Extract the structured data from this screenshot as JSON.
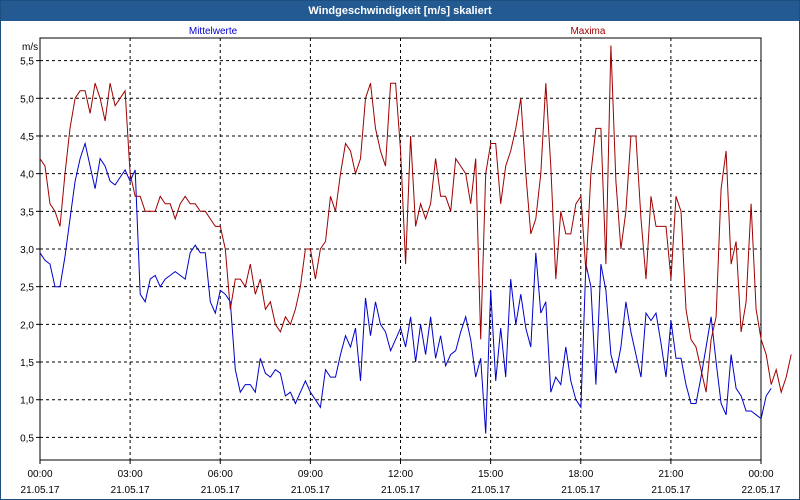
{
  "window": {
    "title": "Windgeschwindigkeit [m/s] skaliert"
  },
  "colors": {
    "titlebar": "#235a92",
    "mean": "#0000cc",
    "max": "#a00000",
    "grid": "#000000"
  },
  "chart_data": {
    "type": "line",
    "title": "Windgeschwindigkeit [m/s] skaliert",
    "ylabel": "m/s",
    "xlabel": "",
    "ylim": [
      0.2,
      5.8
    ],
    "xlim": [
      0,
      24
    ],
    "grid": true,
    "legend_placement": "top",
    "y_ticks": [
      "0,5",
      "1,0",
      "1,5",
      "2,0",
      "2,5",
      "3,0",
      "3,5",
      "4,0",
      "4,5",
      "5,0",
      "5,5"
    ],
    "x_ticks": [
      {
        "time": "00:00",
        "date": "21.05.17"
      },
      {
        "time": "03:00",
        "date": "21.05.17"
      },
      {
        "time": "06:00",
        "date": "21.05.17"
      },
      {
        "time": "09:00",
        "date": "21.05.17"
      },
      {
        "time": "12:00",
        "date": "21.05.17"
      },
      {
        "time": "15:00",
        "date": "21.05.17"
      },
      {
        "time": "18:00",
        "date": "21.05.17"
      },
      {
        "time": "21:00",
        "date": "21.05.17"
      },
      {
        "time": "00:00",
        "date": "22.05.17"
      }
    ],
    "series": [
      {
        "name": "Mittelwerte",
        "color": "#0000cc",
        "x_step_hours": 0.1667,
        "values": [
          2.95,
          2.85,
          2.8,
          2.5,
          2.5,
          2.9,
          3.4,
          3.9,
          4.2,
          4.4,
          4.1,
          3.8,
          4.2,
          4.1,
          3.9,
          3.85,
          3.95,
          4.05,
          3.9,
          4.05,
          2.4,
          2.3,
          2.6,
          2.65,
          2.5,
          2.6,
          2.65,
          2.7,
          2.65,
          2.6,
          2.95,
          3.05,
          2.95,
          2.95,
          2.3,
          2.15,
          2.45,
          2.4,
          2.3,
          1.4,
          1.1,
          1.2,
          1.2,
          1.1,
          1.55,
          1.35,
          1.3,
          1.4,
          1.35,
          1.05,
          1.1,
          0.95,
          1.1,
          1.25,
          1.1,
          1.0,
          0.9,
          1.4,
          1.3,
          1.3,
          1.6,
          1.85,
          1.7,
          1.95,
          1.25,
          2.35,
          1.85,
          2.3,
          2.0,
          1.9,
          1.65,
          1.8,
          1.95,
          1.7,
          2.1,
          1.5,
          2.0,
          1.6,
          2.1,
          1.55,
          1.85,
          1.45,
          1.6,
          1.65,
          1.9,
          2.1,
          1.8,
          1.3,
          1.55,
          0.55,
          2.45,
          1.25,
          1.95,
          1.3,
          2.6,
          2.0,
          2.4,
          1.95,
          1.7,
          2.95,
          2.15,
          2.3,
          1.1,
          1.3,
          1.2,
          1.7,
          1.25,
          1.0,
          0.9,
          2.8,
          2.5,
          1.2,
          2.8,
          2.45,
          1.6,
          1.35,
          1.7,
          2.3,
          1.9,
          1.6,
          1.3,
          2.15,
          2.05,
          2.15,
          1.75,
          1.3,
          2.05,
          1.55,
          1.55,
          1.2,
          0.95,
          0.95,
          1.3,
          1.7,
          2.1,
          1.5,
          0.95,
          0.8,
          1.6,
          1.15,
          1.05,
          0.85,
          0.85,
          0.8,
          0.75,
          1.05,
          1.15
        ]
      },
      {
        "name": "Maxima",
        "color": "#a00000",
        "x_step_hours": 0.1667,
        "values": [
          4.2,
          4.1,
          3.6,
          3.5,
          3.3,
          4.0,
          4.6,
          5.0,
          5.1,
          5.1,
          4.8,
          5.2,
          5.0,
          4.7,
          5.2,
          4.9,
          5.0,
          5.1,
          4.0,
          3.7,
          3.7,
          3.5,
          3.5,
          3.5,
          3.7,
          3.6,
          3.6,
          3.4,
          3.6,
          3.7,
          3.6,
          3.6,
          3.5,
          3.5,
          3.4,
          3.3,
          3.3,
          3.0,
          2.2,
          2.6,
          2.6,
          2.5,
          2.8,
          2.4,
          2.6,
          2.2,
          2.3,
          2.0,
          1.9,
          2.1,
          2.0,
          2.2,
          2.5,
          3.0,
          3.0,
          2.6,
          3.0,
          3.1,
          3.7,
          3.5,
          4.0,
          4.4,
          4.3,
          4.0,
          4.2,
          5.0,
          5.2,
          4.6,
          4.3,
          4.1,
          5.2,
          5.2,
          4.3,
          2.8,
          4.5,
          3.3,
          3.6,
          3.4,
          3.6,
          4.2,
          3.7,
          3.7,
          3.5,
          4.2,
          4.1,
          4.0,
          3.6,
          4.2,
          1.8,
          4.0,
          4.4,
          4.4,
          3.6,
          4.1,
          4.3,
          4.6,
          5.0,
          4.0,
          3.2,
          3.4,
          4.0,
          5.2,
          4.1,
          2.6,
          3.5,
          3.2,
          3.2,
          3.6,
          3.7,
          2.7,
          4.0,
          4.6,
          4.6,
          2.8,
          5.7,
          3.9,
          3.0,
          3.5,
          4.5,
          4.5,
          3.4,
          2.6,
          3.7,
          3.3,
          3.3,
          3.3,
          2.6,
          3.7,
          3.5,
          2.2,
          1.8,
          1.7,
          1.4,
          1.1,
          1.8,
          2.1,
          3.8,
          4.3,
          2.8,
          3.1,
          1.9,
          2.3,
          3.6,
          2.2,
          1.8,
          1.6,
          1.2,
          1.4,
          1.1,
          1.3,
          1.6
        ]
      }
    ]
  }
}
